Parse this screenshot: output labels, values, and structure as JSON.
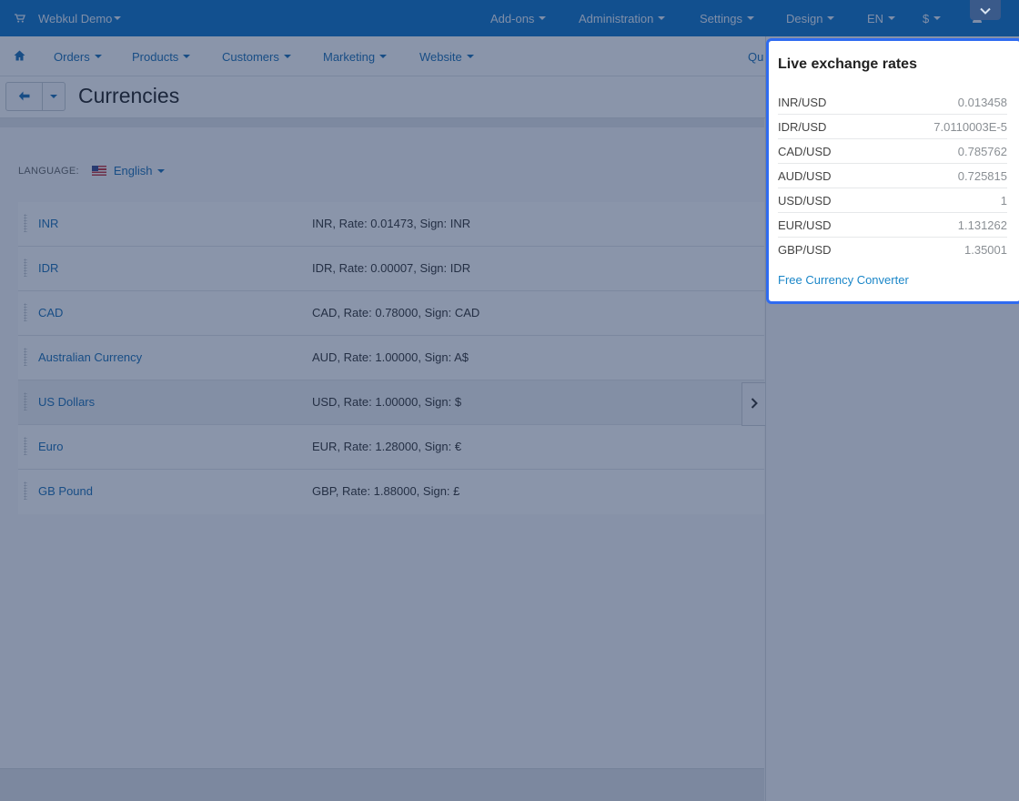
{
  "topbar": {
    "brand": "Webkul Demo",
    "menus": [
      {
        "label": "Add-ons"
      },
      {
        "label": "Administration"
      },
      {
        "label": "Settings"
      },
      {
        "label": "Design"
      },
      {
        "label": "EN"
      },
      {
        "label": "$"
      }
    ]
  },
  "navbar": {
    "items": [
      {
        "label": "Orders"
      },
      {
        "label": "Products"
      },
      {
        "label": "Customers"
      },
      {
        "label": "Marketing"
      },
      {
        "label": "Website"
      },
      {
        "label": "Qu"
      }
    ]
  },
  "page": {
    "title": "Currencies"
  },
  "language": {
    "label": "LANGUAGE:",
    "value": "English"
  },
  "currencies": [
    {
      "name": "INR",
      "desc": "INR, Rate: 0.01473, Sign: INR"
    },
    {
      "name": "IDR",
      "desc": "IDR, Rate: 0.00007, Sign: IDR"
    },
    {
      "name": "CAD",
      "desc": "CAD, Rate: 0.78000, Sign: CAD"
    },
    {
      "name": "Australian Currency",
      "desc": "AUD, Rate: 1.00000, Sign: A$"
    },
    {
      "name": "US Dollars",
      "desc": "USD, Rate: 1.00000, Sign: $"
    },
    {
      "name": "Euro",
      "desc": "EUR, Rate: 1.28000, Sign: €"
    },
    {
      "name": "GB Pound",
      "desc": "GBP, Rate: 1.88000, Sign: £"
    }
  ],
  "rates_panel": {
    "title": "Live exchange rates",
    "rates": [
      {
        "pair": "INR/USD",
        "value": "0.013458"
      },
      {
        "pair": "IDR/USD",
        "value": "7.0110003E-5"
      },
      {
        "pair": "CAD/USD",
        "value": "0.785762"
      },
      {
        "pair": "AUD/USD",
        "value": "0.725815"
      },
      {
        "pair": "USD/USD",
        "value": "1"
      },
      {
        "pair": "EUR/USD",
        "value": "1.131262"
      },
      {
        "pair": "GBP/USD",
        "value": "1.35001"
      }
    ],
    "link": "Free Currency Converter"
  },
  "colors": {
    "topbar": "#0e74c8",
    "link": "#1a6fb5",
    "panel_border": "#2f6bf0"
  },
  "icons": {
    "brand": "cart-icon",
    "home": "home-icon",
    "back": "arrow-left-icon",
    "user": "user-icon",
    "toggle": "chevron-right-icon",
    "collapse": "chevron-down-icon"
  }
}
